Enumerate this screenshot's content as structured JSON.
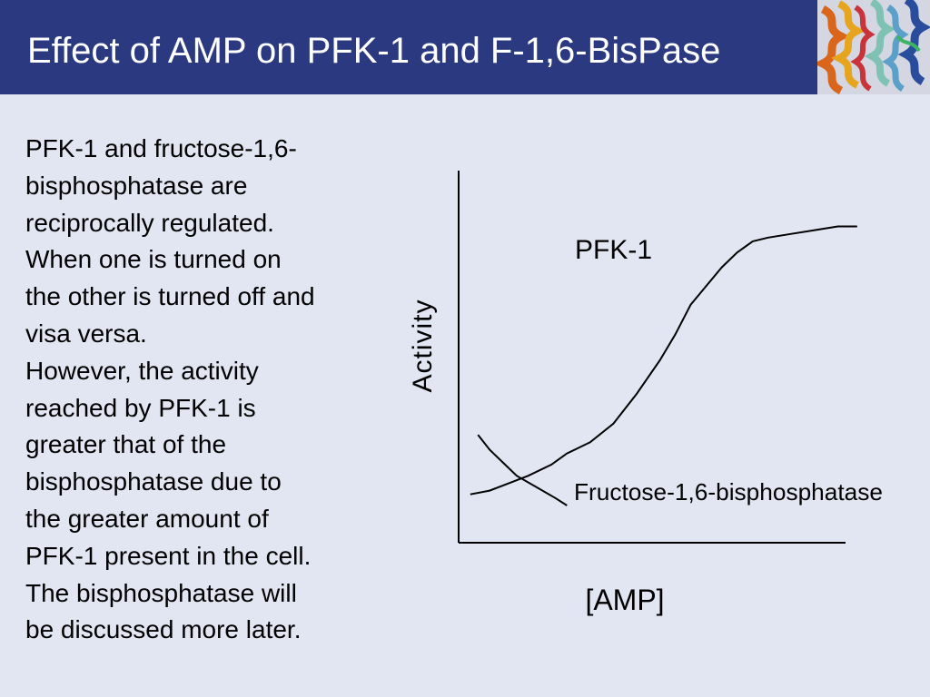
{
  "slide": {
    "title": "Effect of AMP on PFK-1 and F-1,6-BisPase",
    "body_lines": [
      "PFK-1 and fructose-1,6-",
      "bisphosphatase are",
      "reciprocally regulated.",
      "When one is turned on",
      "the other is turned off and",
      "visa versa.",
      "However, the activity",
      "reached by PFK-1 is",
      "greater that of the",
      "bisphosphatase due to",
      "the greater amount of",
      "PFK-1 present in the cell.",
      "The bisphosphatase will",
      "be discussed more later."
    ],
    "header_image": "protein-ribbon-structure-image"
  },
  "colors": {
    "title_bar": "#2b3a80",
    "title_text": "#ffffff",
    "background": "#e2e6f2",
    "line": "#000000"
  },
  "chart_data": {
    "type": "line",
    "xlabel": "[AMP]",
    "ylabel": "Activity",
    "xlim": [
      0,
      100
    ],
    "ylim": [
      0,
      100
    ],
    "grid": false,
    "legend": "none",
    "axis_ticks": false,
    "series": [
      {
        "name": "PFK-1",
        "x": [
          3,
          8,
          13,
          18,
          24,
          28,
          34,
          40,
          46,
          52,
          56,
          60,
          64,
          68,
          72,
          76,
          80,
          86,
          92,
          98,
          103
        ],
        "y": [
          13,
          14,
          16,
          18,
          21,
          24,
          27,
          32,
          40,
          49,
          56,
          64,
          69,
          74,
          78,
          81,
          82,
          83,
          84,
          85,
          85
        ]
      },
      {
        "name": "Fructose-1,6-bisphosphatase",
        "x": [
          5,
          8,
          12,
          15,
          20,
          25,
          28
        ],
        "y": [
          29,
          25,
          21,
          18,
          15,
          12,
          10
        ]
      }
    ]
  }
}
